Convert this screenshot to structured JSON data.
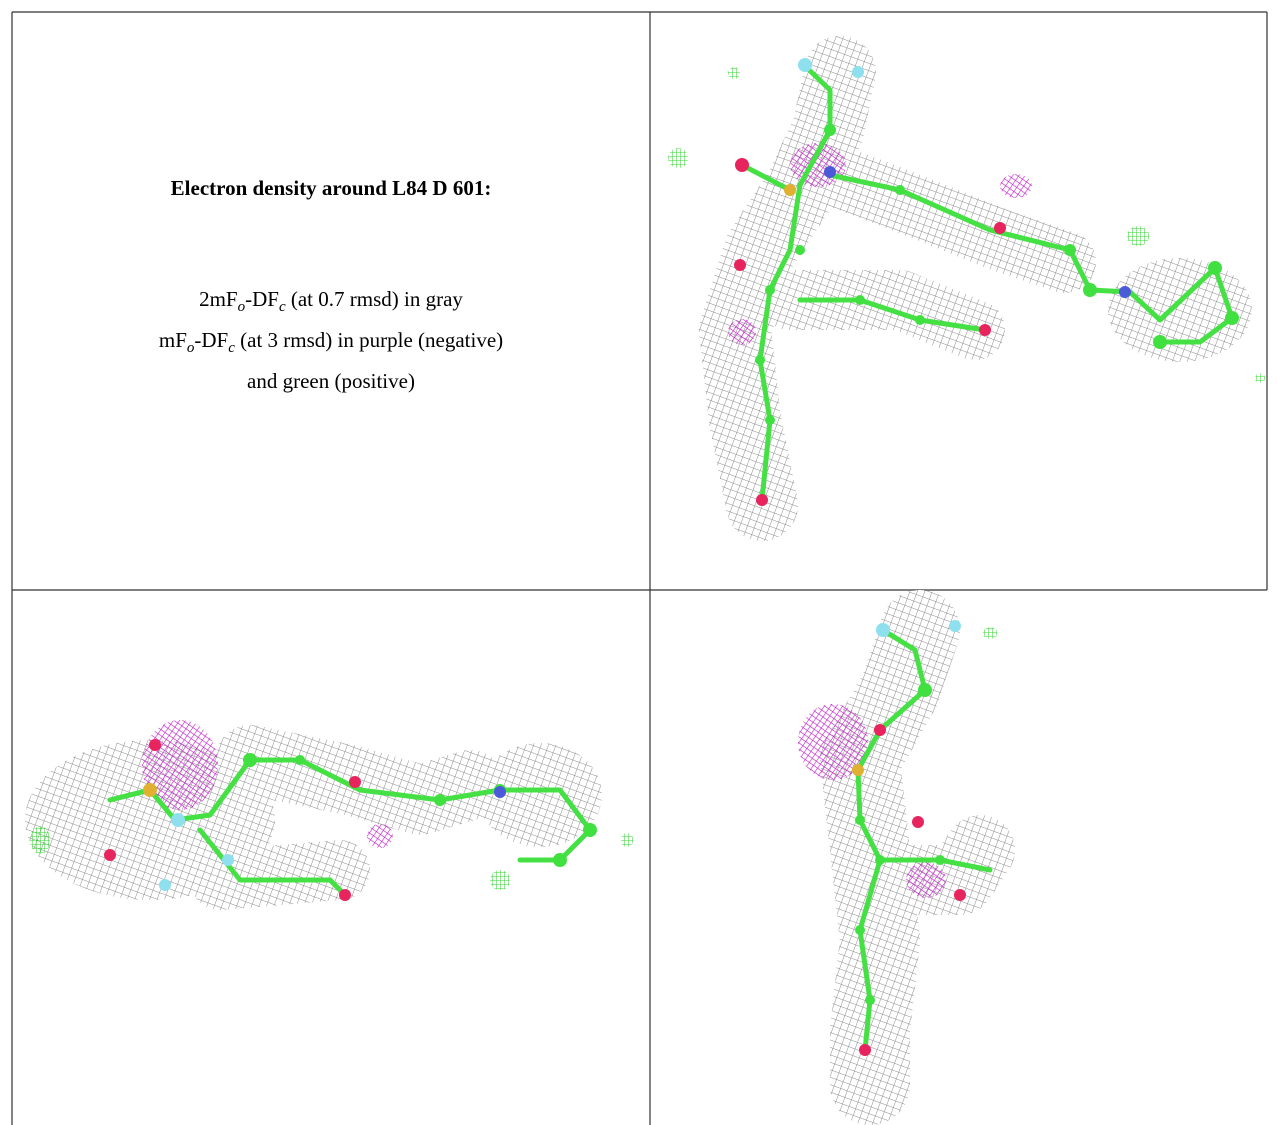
{
  "title": "Electron density around L84 D 601:",
  "legend": [
    [
      "2mF",
      "o",
      "-DF",
      "c",
      " (at 0.7 rmsd) in gray"
    ],
    [
      "mF",
      "o",
      "-DF",
      "c",
      " (at 3 rmsd) in purple (negative)"
    ],
    [
      "and green (positive)"
    ]
  ]
}
